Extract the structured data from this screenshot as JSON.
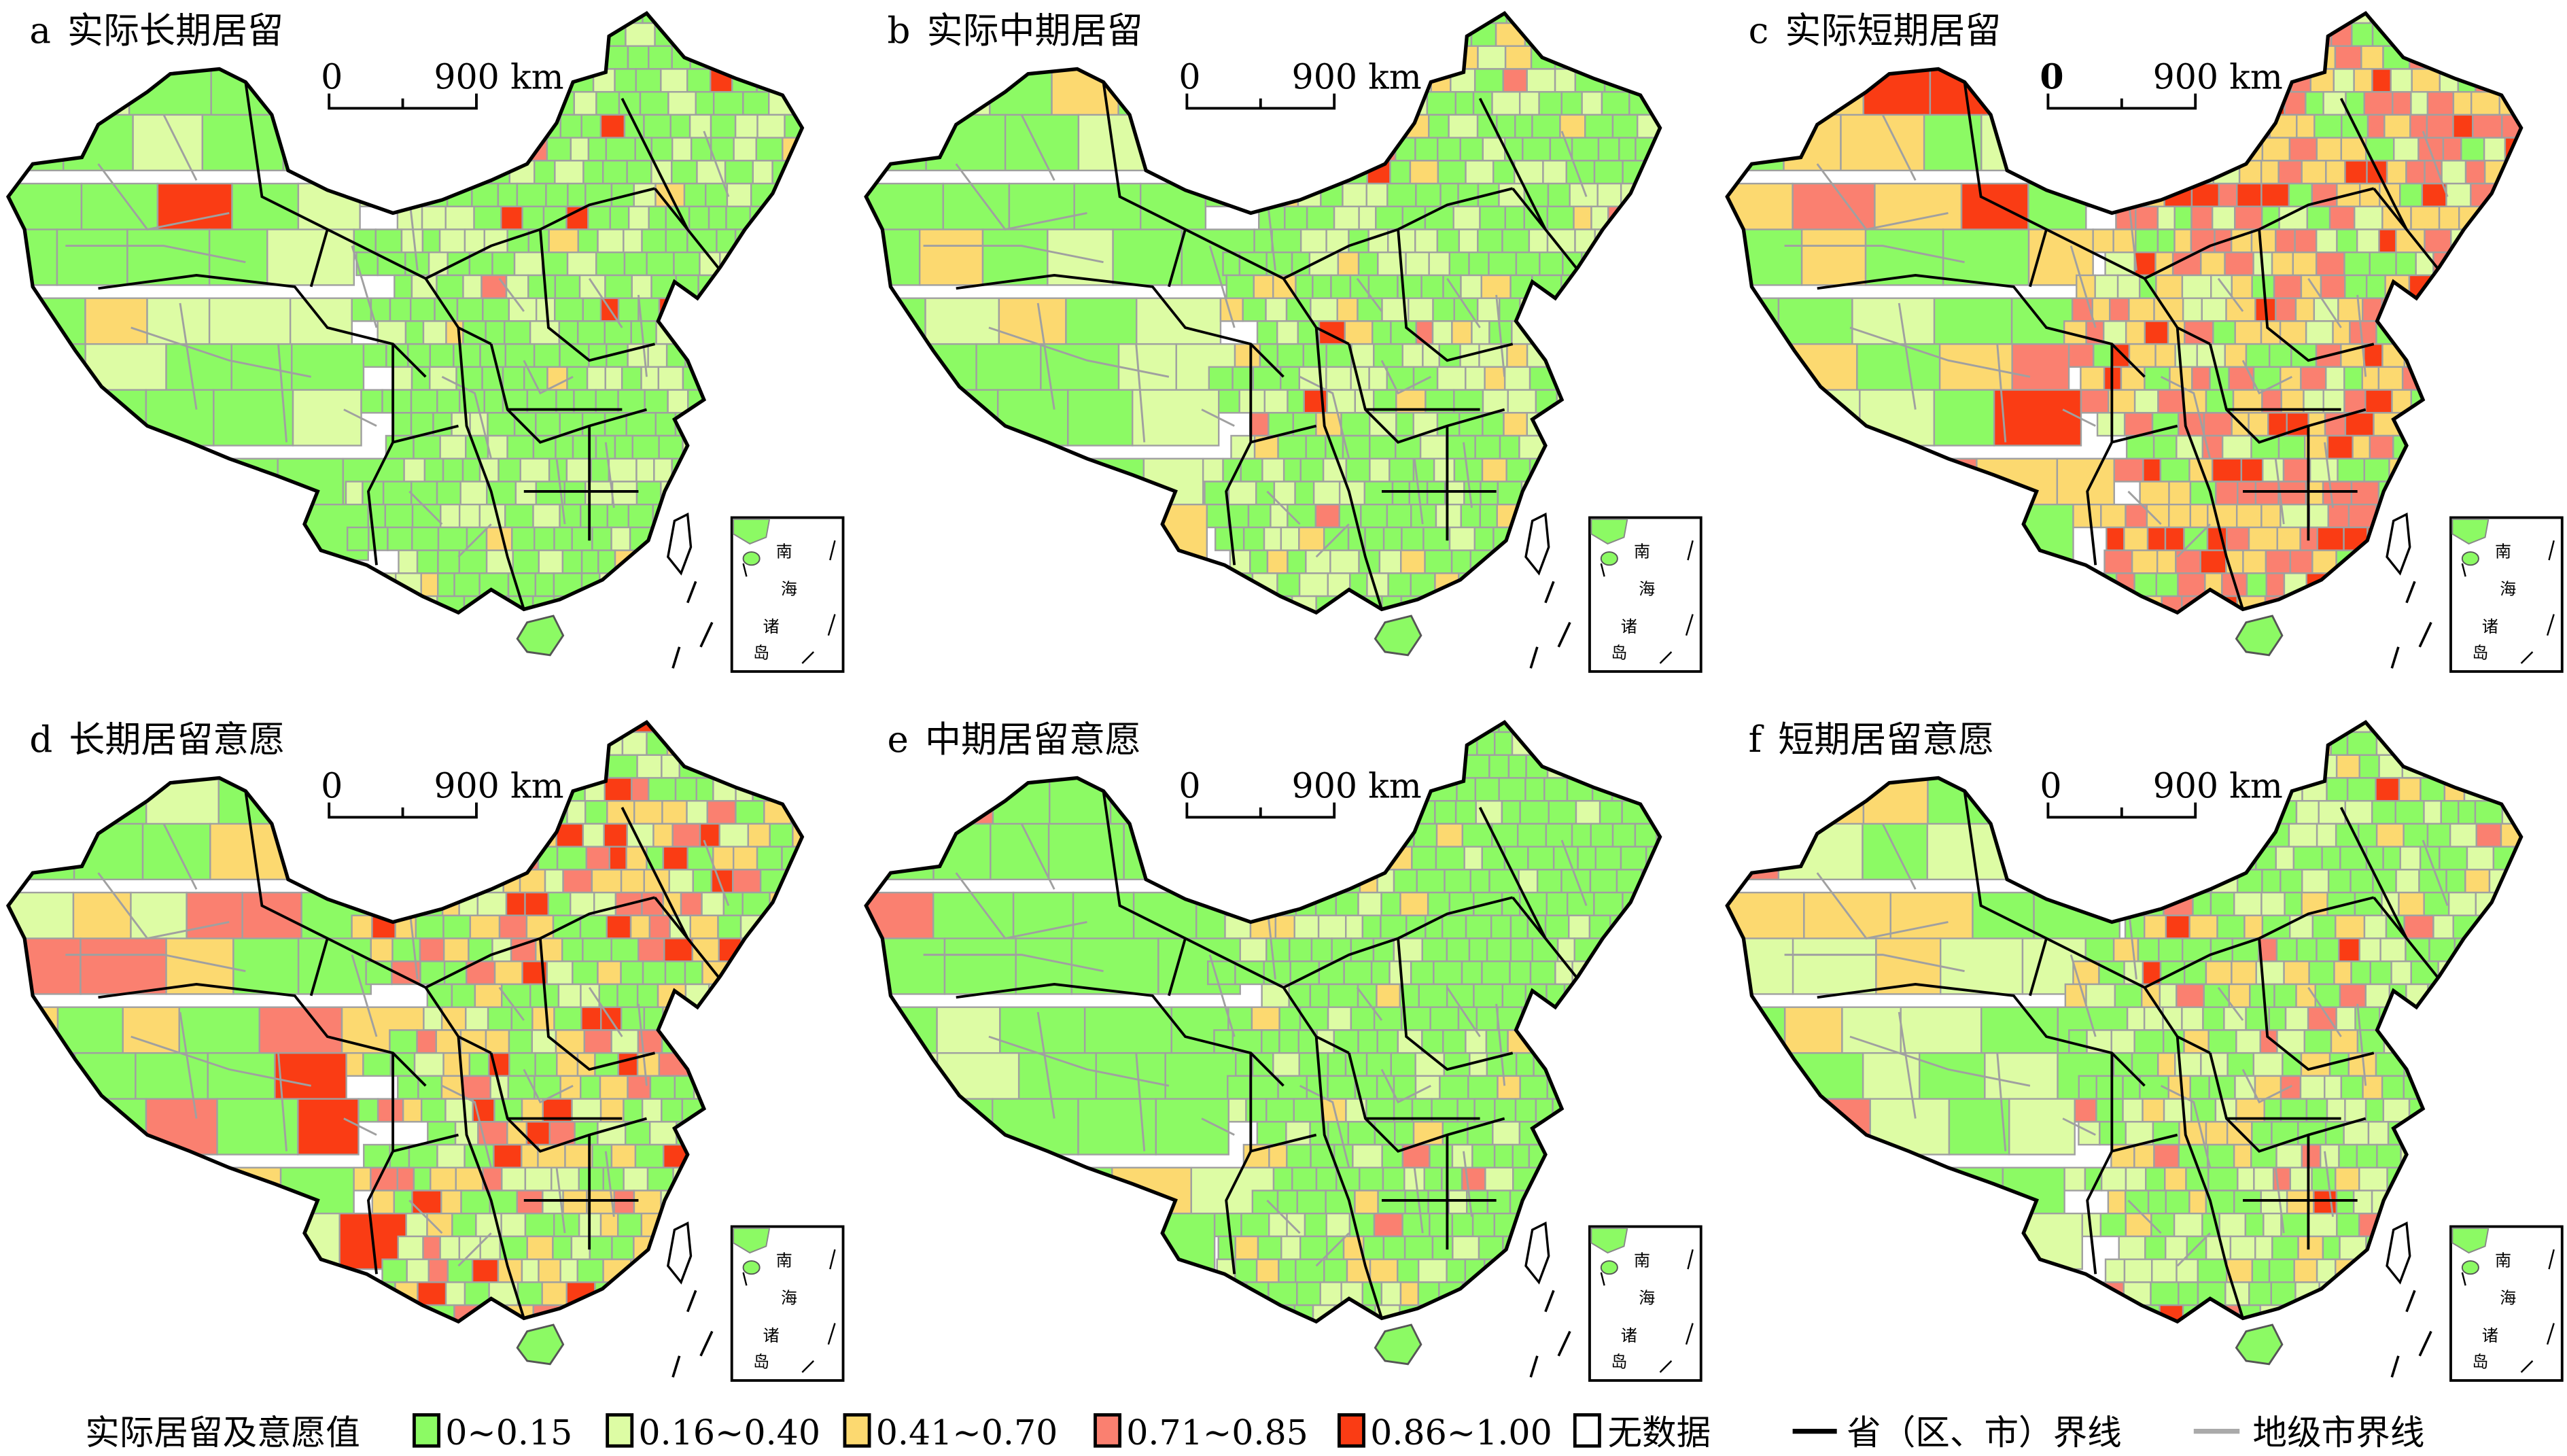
{
  "panels": [
    {
      "letter": "a",
      "title": "实际长期居留",
      "scale_zero": "0",
      "scale_label": "900 km",
      "class_share": [
        0.7,
        0.22,
        0.05,
        0.01,
        0.02
      ]
    },
    {
      "letter": "b",
      "title": "实际中期居留",
      "scale_zero": "0",
      "scale_label": "900 km",
      "class_share": [
        0.58,
        0.32,
        0.07,
        0.02,
        0.01
      ]
    },
    {
      "letter": "c",
      "title": "实际短期居留",
      "scale_zero": "0",
      "scale_label": "900 km",
      "class_share": [
        0.2,
        0.15,
        0.3,
        0.25,
        0.1
      ]
    },
    {
      "letter": "d",
      "title": "长期居留意愿",
      "scale_zero": "0",
      "scale_label": "900 km",
      "class_share": [
        0.3,
        0.2,
        0.25,
        0.15,
        0.1
      ]
    },
    {
      "letter": "e",
      "title": "中期居留意愿",
      "scale_zero": "0",
      "scale_label": "900 km",
      "class_share": [
        0.8,
        0.15,
        0.04,
        0.01,
        0.0
      ]
    },
    {
      "letter": "f",
      "title": "短期居留意愿",
      "scale_zero": "0",
      "scale_label": "900 km",
      "class_share": [
        0.45,
        0.3,
        0.15,
        0.07,
        0.03
      ]
    }
  ],
  "inset": {
    "chars": [
      "南",
      "海",
      "诸",
      "岛"
    ]
  },
  "legend": {
    "title": "实际居留及意愿值",
    "classes": [
      {
        "label": "0~0.15",
        "color": "#8cfa64"
      },
      {
        "label": "0.16~0.40",
        "color": "#ddfca4"
      },
      {
        "label": "0.41~0.70",
        "color": "#fcd970"
      },
      {
        "label": "0.71~0.85",
        "color": "#fa8070"
      },
      {
        "label": "0.86~1.00",
        "color": "#fa3c14"
      }
    ],
    "no_data": "无数据",
    "province_boundary": "省（区、市）界线",
    "city_boundary": "地级市界线"
  }
}
